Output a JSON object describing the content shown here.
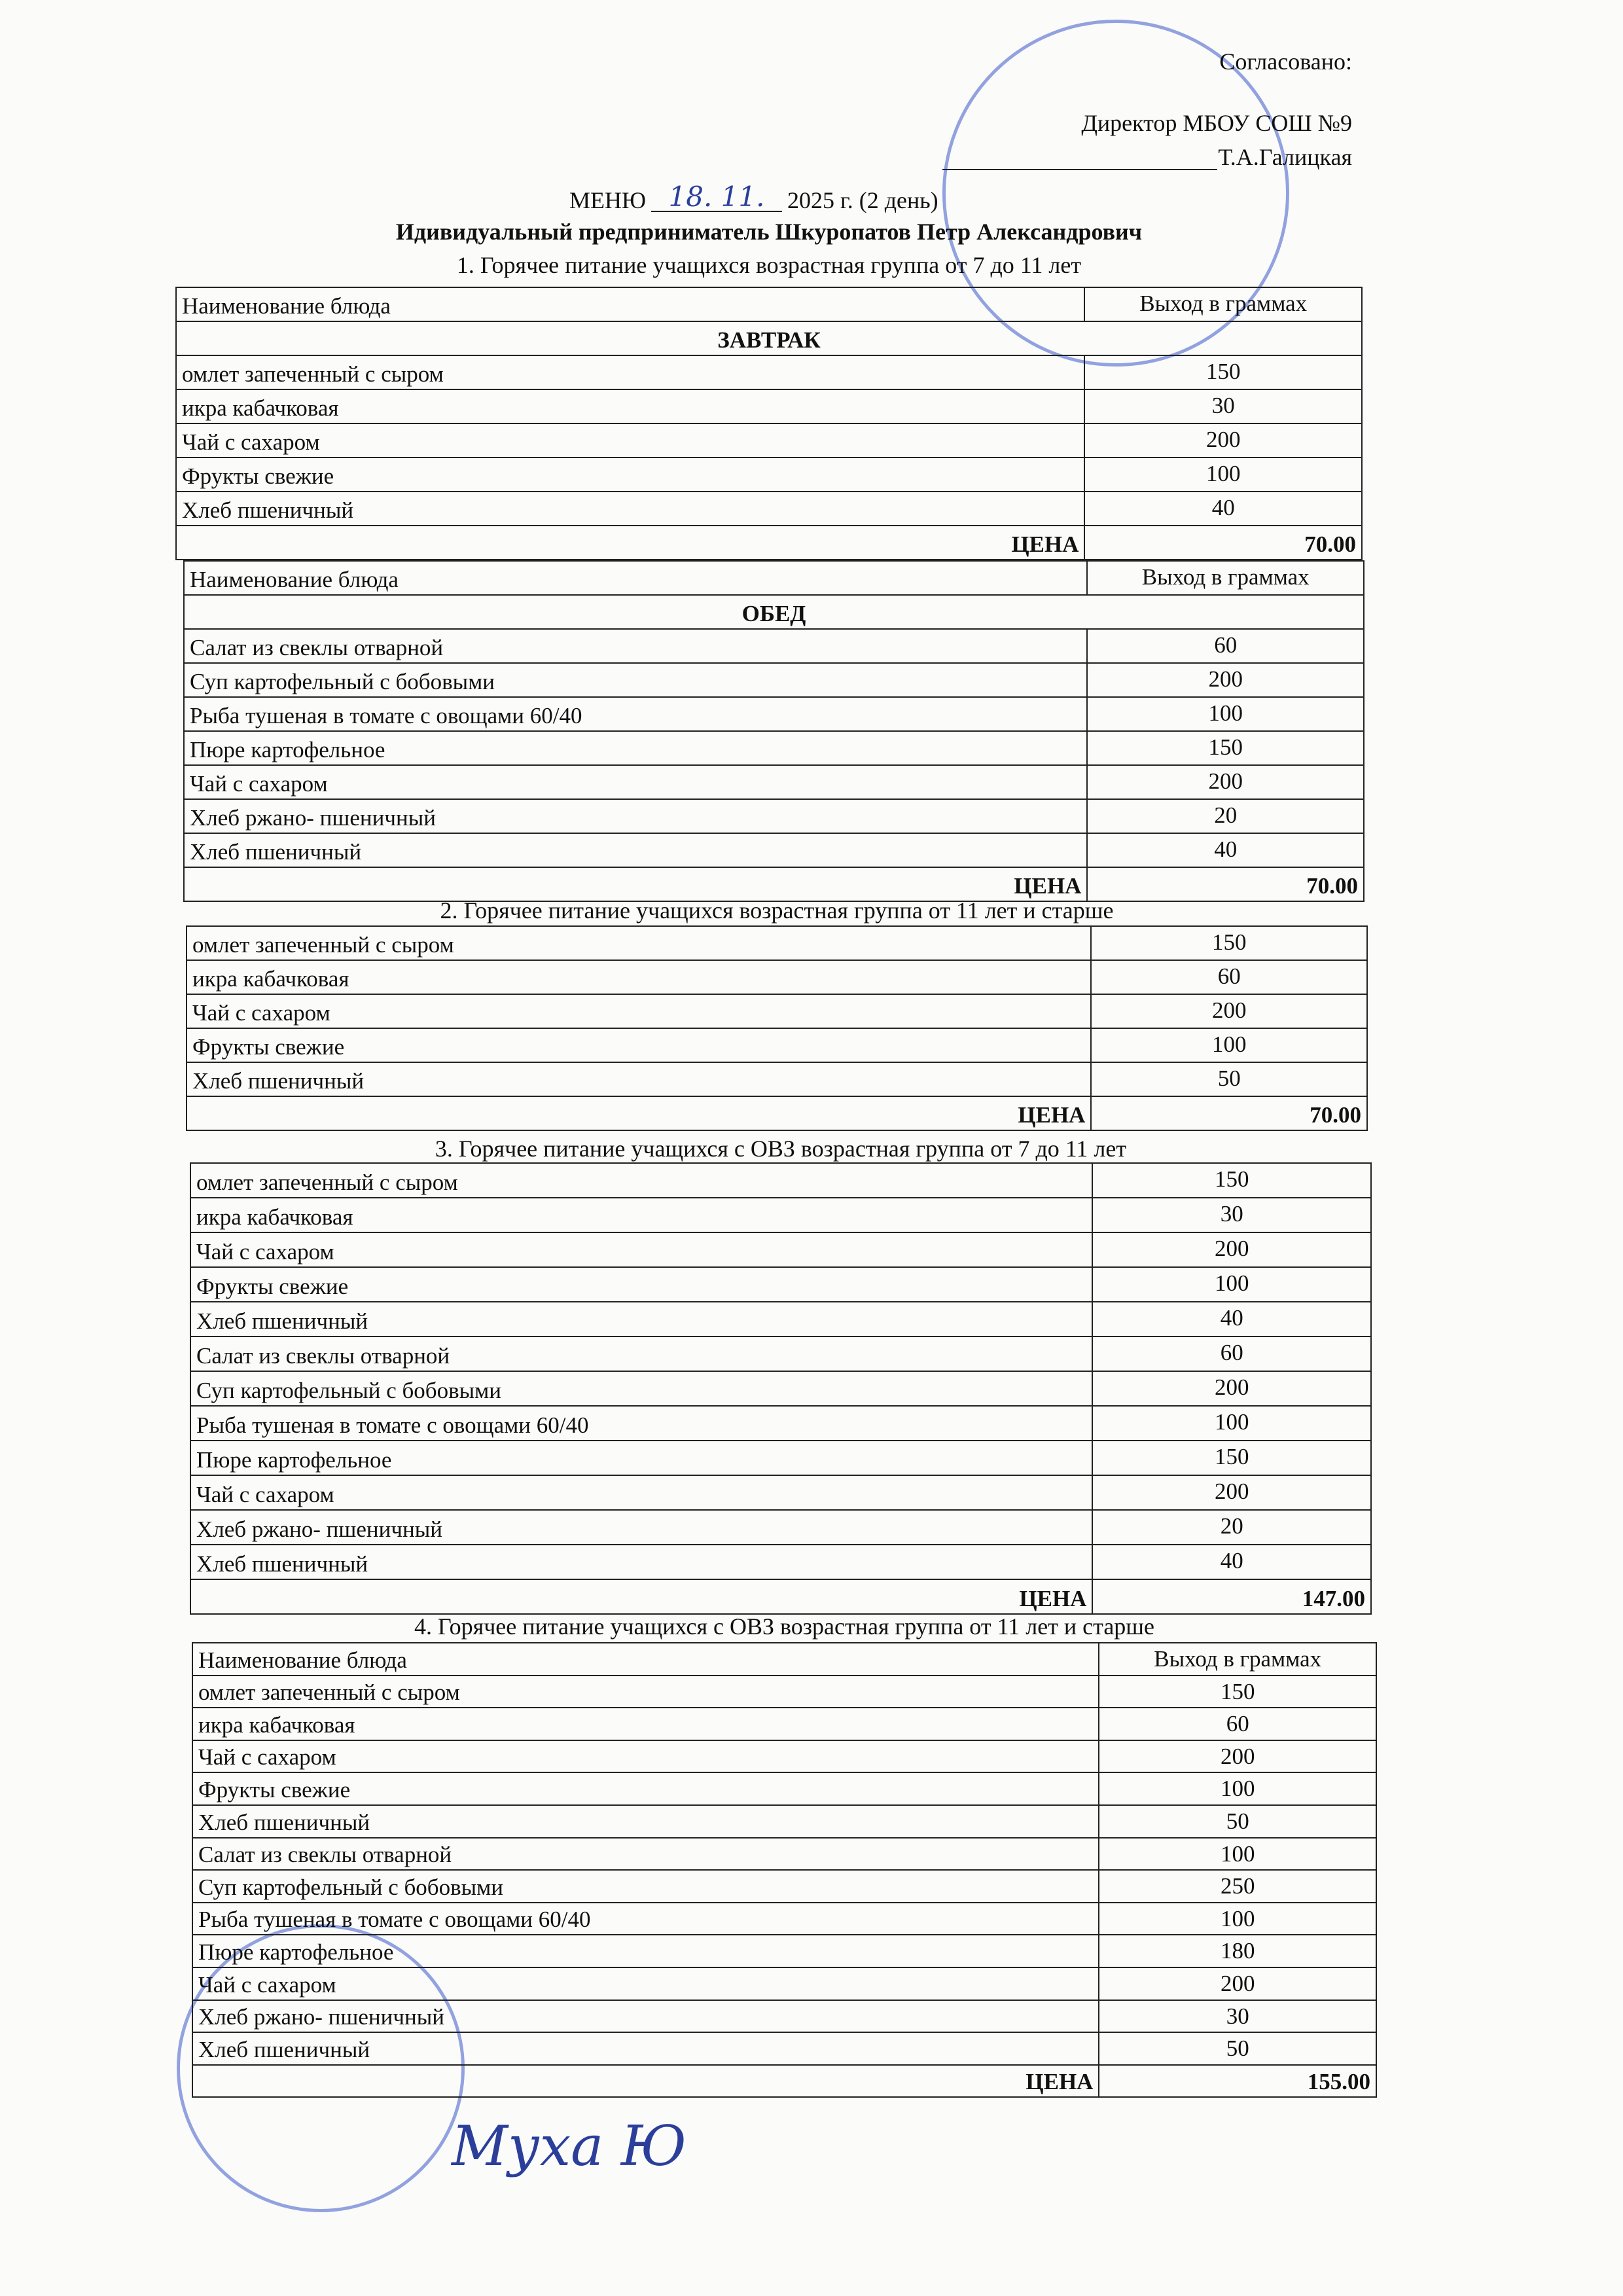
{
  "approval": {
    "label": "Согласовано:",
    "position": "Директор МБОУ СОШ №9",
    "name": "Т.А.Галицкая"
  },
  "title": {
    "prefix": "МЕНЮ",
    "date": "18. 11.",
    "suffix": "2025 г. (2 день)"
  },
  "organization": "Идивидуальный предприниматель Шкуропатов Петр Александрович",
  "sections": [
    {
      "caption": "1. Горячее питание учащихся возрастная группа от 7 до 11 лет",
      "tables": [
        {
          "header": [
            "Наименование блюда",
            "Выход в граммах"
          ],
          "meal": "ЗАВТРАК",
          "rows": [
            [
              "омлет запеченный с сыром",
              150
            ],
            [
              "икра кабачковая",
              30
            ],
            [
              "Чай с сахаром",
              200
            ],
            [
              "Фрукты свежие",
              100
            ],
            [
              "Хлеб пшеничный",
              40
            ]
          ],
          "price_label": "ЦЕНА",
          "price": "70.00"
        },
        {
          "header": [
            "Наименование блюда",
            "Выход в граммах"
          ],
          "meal": "ОБЕД",
          "rows": [
            [
              "Салат из свеклы отварной",
              60
            ],
            [
              "Суп картофельный с бобовыми",
              200
            ],
            [
              "Рыба тушеная в томате с овощами 60/40",
              100
            ],
            [
              "Пюре картофельное",
              150
            ],
            [
              "Чай с сахаром",
              200
            ],
            [
              "Хлеб ржано- пшеничный",
              20
            ],
            [
              "Хлеб пшеничный",
              40
            ]
          ],
          "price_label": "ЦЕНА",
          "price": "70.00"
        }
      ]
    },
    {
      "caption": "2. Горячее питание учащихся возрастная группа от 11 лет и старше",
      "tables": [
        {
          "rows": [
            [
              "омлет запеченный с сыром",
              150
            ],
            [
              "икра кабачковая",
              60
            ],
            [
              "Чай с сахаром",
              200
            ],
            [
              "Фрукты свежие",
              100
            ],
            [
              "Хлеб пшеничный",
              50
            ]
          ],
          "price_label": "ЦЕНА",
          "price": "70.00"
        }
      ]
    },
    {
      "caption": "3. Горячее питание учащихся с ОВЗ возрастная группа от 7 до 11 лет",
      "tables": [
        {
          "rows": [
            [
              "омлет запеченный с сыром",
              150
            ],
            [
              "икра кабачковая",
              30
            ],
            [
              "Чай с сахаром",
              200
            ],
            [
              "Фрукты свежие",
              100
            ],
            [
              "Хлеб пшеничный",
              40
            ],
            [
              "Салат из свеклы отварной",
              60
            ],
            [
              "Суп картофельный с бобовыми",
              200
            ],
            [
              "Рыба тушеная в томате с овощами 60/40",
              100
            ],
            [
              "Пюре картофельное",
              150
            ],
            [
              "Чай с сахаром",
              200
            ],
            [
              "Хлеб ржано- пшеничный",
              20
            ],
            [
              "Хлеб пшеничный",
              40
            ]
          ],
          "price_label": "ЦЕНА",
          "price": "147.00"
        }
      ]
    },
    {
      "caption": "4. Горячее питание учащихся с ОВЗ возрастная группа от  11 лет и старше",
      "tables": [
        {
          "header": [
            "Наименование блюда",
            "Выход в граммах"
          ],
          "rows": [
            [
              "омлет запеченный с сыром",
              150
            ],
            [
              "икра кабачковая",
              60
            ],
            [
              "Чай с сахаром",
              200
            ],
            [
              "Фрукты свежие",
              100
            ],
            [
              "Хлеб пшеничный",
              50
            ],
            [
              "Салат из свеклы отварной",
              100
            ],
            [
              "Суп картофельный с бобовыми",
              250
            ],
            [
              "Рыба тушеная в томате с овощами 60/40",
              100
            ],
            [
              "Пюре картофельное",
              180
            ],
            [
              "Чай с сахаром",
              200
            ],
            [
              "Хлеб ржано- пшеничный",
              30
            ],
            [
              "Хлеб пшеничный",
              50
            ]
          ],
          "price_label": "ЦЕНА",
          "price": "155.00"
        }
      ]
    }
  ],
  "signature": "Муха Ю"
}
